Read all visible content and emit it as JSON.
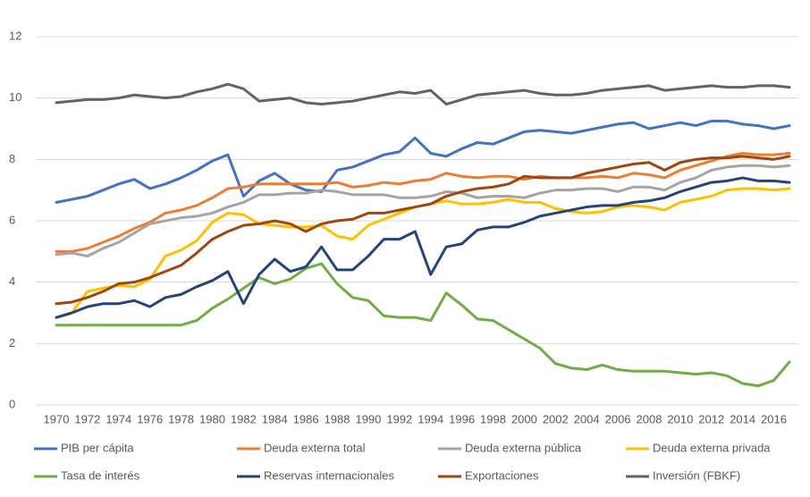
{
  "chart_data": {
    "type": "line",
    "categories": [
      "1970",
      null,
      "1972",
      null,
      "1974",
      null,
      "1976",
      null,
      "1978",
      null,
      "1980",
      null,
      "1982",
      null,
      "1984",
      null,
      "1986",
      null,
      "1988",
      null,
      "1990",
      null,
      "1992",
      null,
      "1994",
      null,
      "1996",
      null,
      "1998",
      null,
      "2000",
      null,
      "2002",
      null,
      "2004",
      null,
      "2006",
      null,
      "2008",
      null,
      "2010",
      null,
      "2012",
      null,
      "2014",
      null,
      "2016",
      null
    ],
    "ylim": [
      0,
      12
    ],
    "yticks": [
      0,
      2,
      4,
      6,
      8,
      10,
      12
    ],
    "grid": true,
    "series": [
      {
        "name": "PIB per cápita",
        "color": "#4472c4",
        "values": [
          6.6,
          6.7,
          6.8,
          7.0,
          7.2,
          7.35,
          7.05,
          7.2,
          7.4,
          7.65,
          7.95,
          8.15,
          6.8,
          7.3,
          7.55,
          7.2,
          7.0,
          6.95,
          7.65,
          7.75,
          7.95,
          8.15,
          8.25,
          8.7,
          8.2,
          8.1,
          8.35,
          8.55,
          8.5,
          8.7,
          8.9,
          8.95,
          8.9,
          8.85,
          8.95,
          9.05,
          9.15,
          9.2,
          9.0,
          9.1,
          9.2,
          9.1,
          9.25,
          9.25,
          9.15,
          9.1,
          9.0,
          9.1
        ]
      },
      {
        "name": "Deuda externa total",
        "color": "#ed7d31",
        "values": [
          5.0,
          5.0,
          5.1,
          5.3,
          5.5,
          5.75,
          5.95,
          6.25,
          6.35,
          6.5,
          6.75,
          7.05,
          7.1,
          7.2,
          7.2,
          7.2,
          7.2,
          7.2,
          7.25,
          7.1,
          7.15,
          7.25,
          7.2,
          7.3,
          7.35,
          7.55,
          7.45,
          7.4,
          7.45,
          7.45,
          7.35,
          7.45,
          7.4,
          7.4,
          7.4,
          7.45,
          7.4,
          7.55,
          7.5,
          7.4,
          7.65,
          7.8,
          7.95,
          8.1,
          8.2,
          8.15,
          8.15,
          8.2
        ]
      },
      {
        "name": "Deuda externa pública",
        "color": "#a5a5a5",
        "values": [
          4.9,
          4.95,
          4.85,
          5.1,
          5.3,
          5.6,
          5.9,
          6.0,
          6.1,
          6.15,
          6.25,
          6.45,
          6.6,
          6.85,
          6.85,
          6.9,
          6.9,
          7.0,
          6.95,
          6.85,
          6.85,
          6.85,
          6.75,
          6.75,
          6.8,
          6.95,
          6.9,
          6.75,
          6.8,
          6.8,
          6.75,
          6.9,
          7.0,
          7.0,
          7.05,
          7.05,
          6.95,
          7.1,
          7.1,
          7.0,
          7.25,
          7.4,
          7.65,
          7.75,
          7.8,
          7.8,
          7.75,
          7.8
        ]
      },
      {
        "name": "Deuda externa privada",
        "color": "#ffc000",
        "values": [
          2.85,
          3.0,
          3.7,
          3.8,
          3.9,
          3.85,
          4.1,
          4.85,
          5.05,
          5.35,
          5.95,
          6.25,
          6.2,
          5.9,
          5.85,
          5.8,
          5.8,
          5.85,
          5.5,
          5.4,
          5.85,
          6.05,
          6.25,
          6.45,
          6.55,
          6.65,
          6.55,
          6.55,
          6.6,
          6.7,
          6.6,
          6.6,
          6.4,
          6.3,
          6.25,
          6.3,
          6.45,
          6.5,
          6.45,
          6.35,
          6.6,
          6.7,
          6.8,
          7.0,
          7.05,
          7.05,
          7.0,
          7.05
        ]
      },
      {
        "name": "Tasa de interés",
        "color": "#70ad47",
        "values": [
          2.6,
          2.6,
          2.6,
          2.6,
          2.6,
          2.6,
          2.6,
          2.6,
          2.6,
          2.75,
          3.15,
          3.45,
          3.8,
          4.15,
          3.95,
          4.1,
          4.45,
          4.6,
          3.95,
          3.5,
          3.4,
          2.9,
          2.85,
          2.85,
          2.75,
          3.65,
          3.25,
          2.8,
          2.75,
          2.45,
          2.15,
          1.85,
          1.35,
          1.2,
          1.15,
          1.3,
          1.15,
          1.1,
          1.1,
          1.1,
          1.05,
          1.0,
          1.05,
          0.95,
          0.7,
          0.62,
          0.8,
          1.4
        ]
      },
      {
        "name": "Reservas internacionales",
        "color": "#264478",
        "values": [
          2.85,
          3.0,
          3.2,
          3.3,
          3.3,
          3.4,
          3.2,
          3.5,
          3.6,
          3.85,
          4.05,
          4.35,
          3.3,
          4.25,
          4.75,
          4.35,
          4.5,
          5.15,
          4.4,
          4.4,
          4.85,
          5.4,
          5.4,
          5.65,
          4.25,
          5.15,
          5.25,
          5.7,
          5.8,
          5.8,
          5.95,
          6.15,
          6.25,
          6.35,
          6.45,
          6.5,
          6.5,
          6.6,
          6.65,
          6.75,
          6.95,
          7.1,
          7.25,
          7.3,
          7.4,
          7.3,
          7.3,
          7.25
        ]
      },
      {
        "name": "Exportaciones",
        "color": "#9e480e",
        "values": [
          3.3,
          3.35,
          3.5,
          3.7,
          3.95,
          4.0,
          4.15,
          4.35,
          4.55,
          4.95,
          5.4,
          5.65,
          5.85,
          5.9,
          6.0,
          5.9,
          5.65,
          5.9,
          6.0,
          6.05,
          6.25,
          6.25,
          6.35,
          6.45,
          6.55,
          6.8,
          6.95,
          7.05,
          7.1,
          7.2,
          7.45,
          7.4,
          7.4,
          7.4,
          7.55,
          7.65,
          7.75,
          7.85,
          7.9,
          7.65,
          7.9,
          8.0,
          8.05,
          8.05,
          8.1,
          8.05,
          8.0,
          8.1
        ]
      },
      {
        "name": "Inversión (FBKF)",
        "color": "#636363",
        "values": [
          9.85,
          9.9,
          9.95,
          9.95,
          10.0,
          10.1,
          10.05,
          10.0,
          10.05,
          10.2,
          10.3,
          10.45,
          10.3,
          9.9,
          9.95,
          10.0,
          9.85,
          9.8,
          9.85,
          9.9,
          10.0,
          10.1,
          10.2,
          10.15,
          10.25,
          9.8,
          9.95,
          10.1,
          10.15,
          10.2,
          10.25,
          10.15,
          10.1,
          10.1,
          10.15,
          10.25,
          10.3,
          10.35,
          10.4,
          10.25,
          10.3,
          10.35,
          10.4,
          10.35,
          10.35,
          10.4,
          10.4,
          10.35
        ]
      }
    ]
  }
}
